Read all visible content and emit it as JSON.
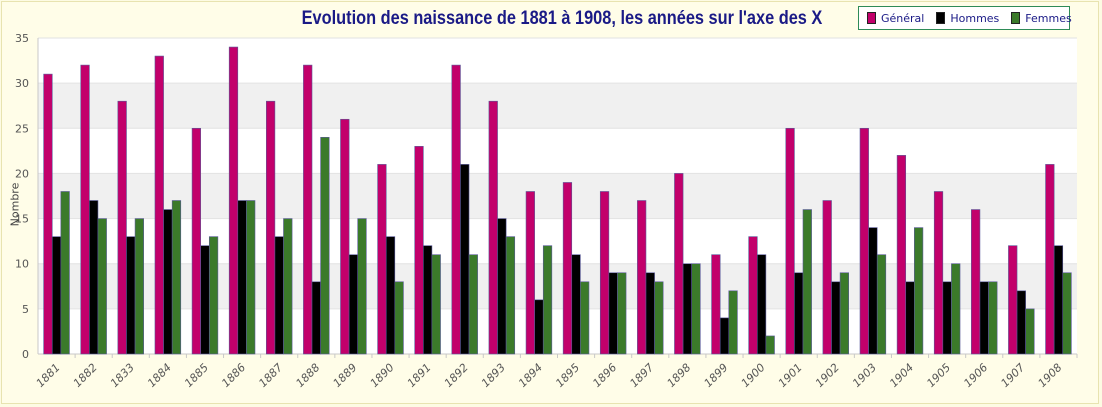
{
  "chart_data": {
    "type": "bar",
    "title": "Evolution des naissance de 1881 à 1908, les années sur l'axe des X",
    "xlabel": "",
    "ylabel": "Nombre",
    "ylim": [
      0,
      35
    ],
    "yticks": [
      0,
      5,
      10,
      15,
      20,
      25,
      30,
      35
    ],
    "legend_position": "top-right",
    "grid": true,
    "categories": [
      "1881",
      "1882",
      "1833",
      "1884",
      "1885",
      "1886",
      "1887",
      "1888",
      "1889",
      "1890",
      "1891",
      "1892",
      "1893",
      "1894",
      "1895",
      "1896",
      "1897",
      "1898",
      "1899",
      "1900",
      "1901",
      "1902",
      "1903",
      "1904",
      "1905",
      "1906",
      "1907",
      "1908"
    ],
    "series": [
      {
        "name": "Général",
        "color": "#c2006b",
        "values": [
          31,
          32,
          28,
          33,
          25,
          34,
          28,
          32,
          26,
          21,
          23,
          32,
          28,
          18,
          19,
          18,
          17,
          20,
          11,
          13,
          25,
          17,
          25,
          22,
          18,
          16,
          12,
          21
        ]
      },
      {
        "name": "Hommes",
        "color": "#000000",
        "values": [
          13,
          17,
          13,
          16,
          12,
          17,
          13,
          8,
          11,
          13,
          12,
          21,
          15,
          6,
          11,
          9,
          9,
          10,
          4,
          11,
          9,
          8,
          14,
          8,
          8,
          8,
          7,
          12
        ]
      },
      {
        "name": "Femmes",
        "color": "#3b7a2a",
        "values": [
          18,
          15,
          15,
          17,
          13,
          17,
          15,
          24,
          15,
          8,
          11,
          11,
          13,
          12,
          8,
          9,
          8,
          10,
          7,
          2,
          16,
          9,
          11,
          14,
          10,
          8,
          5,
          9
        ]
      }
    ]
  }
}
